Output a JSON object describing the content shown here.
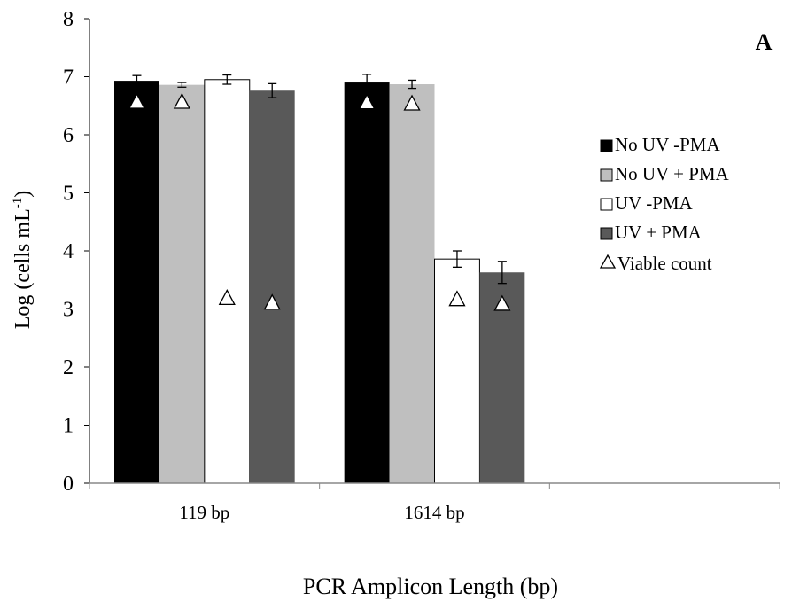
{
  "chart_data": {
    "type": "bar",
    "panel_label": "A",
    "xlabel": "PCR Amplicon Length (bp)",
    "ylabel_main": "Log (cells mL",
    "ylabel_sup": "-1",
    "ylabel_close": ")",
    "ylim": [
      0,
      8
    ],
    "yticks": [
      "0",
      "1",
      "2",
      "3",
      "4",
      "5",
      "6",
      "7",
      "8"
    ],
    "categories": [
      "119 bp",
      "1614 bp"
    ],
    "series": [
      {
        "name": "No UV -PMA",
        "color": "#000000",
        "values": [
          6.93,
          6.9
        ],
        "errors": [
          0.09,
          0.14
        ]
      },
      {
        "name": "No UV + PMA",
        "color": "#bfbfbf",
        "values": [
          6.86,
          6.87
        ],
        "errors": [
          0.04,
          0.07
        ]
      },
      {
        "name": "UV -PMA",
        "color": "#ffffff",
        "values": [
          6.95,
          3.86
        ],
        "errors": [
          0.08,
          0.14
        ]
      },
      {
        "name": "UV + PMA",
        "color": "#595959",
        "values": [
          6.76,
          3.63
        ],
        "errors": [
          0.12,
          0.19
        ]
      }
    ],
    "viable_count": {
      "name": "Viable count",
      "values": [
        [
          6.58,
          6.58,
          3.2,
          3.12
        ],
        [
          6.57,
          6.55,
          3.18,
          3.1
        ]
      ]
    },
    "legend_position": "right",
    "grid": false
  }
}
